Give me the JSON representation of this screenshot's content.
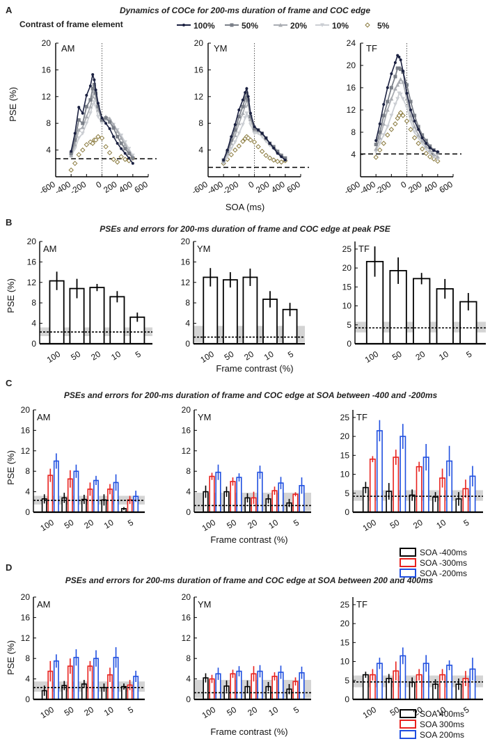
{
  "figure": {
    "panels": [
      {
        "letter": "A",
        "title": "Dynamics of COCe for 200-ms duration of frame and COC edge"
      },
      {
        "letter": "B",
        "title": "PSEs and errors for 200-ms duration of frame and COC edge at peak PSE"
      },
      {
        "letter": "C",
        "title": "PSEs and errors for 200-ms duration of frame and COC edge  at SOA between -400 and -200ms"
      },
      {
        "letter": "D",
        "title": "PSEs and errors for 200-ms duration of frame and COC edge at SOA between 200 and 400ms"
      }
    ],
    "legend_a_label": "Contrast of frame element",
    "legend_a_items": [
      "100%",
      "50%",
      "20%",
      "10%",
      "5%"
    ],
    "legend_a_colors": [
      "#1a2040",
      "#7a7f88",
      "#a9acb2",
      "#cbced3",
      "#8a7a3e"
    ],
    "xlabel_a": "SOA (ms)",
    "xlabel_bcd": "Frame contrast (%)",
    "ylabel": "PSE (%)",
    "subjects": [
      "AM",
      "YM",
      "TF"
    ],
    "soa_colors": [
      "#000000",
      "#e8211d",
      "#1f4fe0"
    ],
    "legend_c": [
      "SOA -400ms",
      "SOA -300ms",
      "SOA -200ms"
    ],
    "legend_d": [
      "SOA  400ms",
      "SOA  300ms",
      "SOA  200ms"
    ]
  },
  "chart_data": [
    {
      "panel": "A",
      "type": "line",
      "title": "Dynamics of COCe for 200-ms duration of frame and COC edge",
      "xlabel": "SOA (ms)",
      "ylabel": "PSE (%)",
      "xlim": [
        -600,
        600
      ],
      "xticks": [
        -600,
        -400,
        -200,
        0,
        200,
        400,
        600
      ],
      "xtick_labels": [
        "-600",
        "-400",
        "-200",
        "0",
        "200",
        "400",
        "600"
      ],
      "x": [
        -400,
        -350,
        -300,
        -250,
        -200,
        -150,
        -120,
        -100,
        -80,
        -50,
        0,
        50,
        100,
        150,
        200,
        250,
        300,
        350,
        400
      ],
      "series_names": [
        "100%",
        "50%",
        "20%",
        "10%",
        "5%"
      ],
      "subplots": [
        {
          "subject": "AM",
          "ylim": [
            0,
            20
          ],
          "yticks": [
            4,
            8,
            12,
            16,
            20
          ],
          "baseline": 2.7,
          "series": [
            [
              3.8,
              6.5,
              10.4,
              9.5,
              12.2,
              13.6,
              15.3,
              14.5,
              13.0,
              11.0,
              8.8,
              8.0,
              7.2,
              6.0,
              5.0,
              4.2,
              3.5,
              2.8,
              2.0
            ],
            [
              3.5,
              5.5,
              8.5,
              8.0,
              10.5,
              11.5,
              13.2,
              13.8,
              12.5,
              10.5,
              8.5,
              8.8,
              8.2,
              7.3,
              6.0,
              5.0,
              4.2,
              3.5,
              2.8
            ],
            [
              3.2,
              4.8,
              7.0,
              7.4,
              9.0,
              10.5,
              12.0,
              12.8,
              11.8,
              10.0,
              8.5,
              9.0,
              8.7,
              7.8,
              6.8,
              5.8,
              4.8,
              3.8,
              3.0
            ],
            [
              3.0,
              4.2,
              5.8,
              6.5,
              8.0,
              9.5,
              10.8,
              11.2,
              10.5,
              9.0,
              8.0,
              8.5,
              8.4,
              7.8,
              7.0,
              6.2,
              5.2,
              4.2,
              3.2
            ],
            [
              1.0,
              2.0,
              3.3,
              4.0,
              4.8,
              5.2,
              5.0,
              5.5,
              5.5,
              6.0,
              5.8,
              4.5,
              3.6,
              2.6,
              2.2,
              3.0,
              2.6,
              2.4,
              2.8
            ]
          ]
        },
        {
          "subject": "YM",
          "ylim": [
            0,
            20
          ],
          "yticks": [
            4,
            8,
            12,
            16,
            20
          ],
          "baseline": 1.4,
          "series": [
            [
              2.5,
              4.0,
              6.0,
              7.8,
              10.0,
              11.5,
              12.6,
              13.2,
              12.0,
              9.5,
              7.5,
              7.0,
              6.5,
              5.8,
              5.0,
              4.3,
              3.5,
              3.0,
              2.5
            ],
            [
              2.5,
              3.8,
              5.5,
              7.0,
              9.0,
              10.5,
              11.8,
              12.5,
              11.5,
              9.0,
              7.2,
              7.0,
              6.5,
              5.8,
              5.0,
              4.5,
              3.8,
              3.2,
              2.8
            ],
            [
              2.3,
              3.5,
              5.0,
              6.2,
              8.0,
              9.5,
              10.6,
              11.5,
              10.8,
              8.6,
              7.0,
              6.9,
              6.4,
              5.7,
              5.0,
              4.4,
              3.8,
              3.2,
              2.6
            ],
            [
              2.0,
              3.0,
              4.2,
              5.2,
              6.5,
              7.8,
              8.8,
              9.5,
              9.0,
              7.8,
              6.5,
              6.5,
              6.0,
              5.3,
              4.7,
              4.2,
              3.6,
              3.0,
              2.5
            ],
            [
              2.0,
              2.6,
              3.3,
              4.0,
              4.6,
              5.3,
              5.7,
              6.0,
              5.8,
              5.5,
              5.2,
              4.5,
              3.8,
              3.2,
              2.8,
              2.5,
              2.3,
              2.2,
              2.4
            ]
          ]
        },
        {
          "subject": "TF",
          "ylim": [
            0,
            24
          ],
          "yticks": [
            4,
            8,
            12,
            16,
            20,
            24
          ],
          "baseline": 4.1,
          "series": [
            [
              6.5,
              9.5,
              13.0,
              16.0,
              18.5,
              20.5,
              21.8,
              21.5,
              21.0,
              19.0,
              15.0,
              12.0,
              10.0,
              8.5,
              7.0,
              6.0,
              5.2,
              4.7,
              4.5
            ],
            [
              5.8,
              8.0,
              11.0,
              13.5,
              16.0,
              18.0,
              19.5,
              19.5,
              19.3,
              18.8,
              16.5,
              13.5,
              11.0,
              9.0,
              7.5,
              6.5,
              5.5,
              4.8,
              4.3
            ],
            [
              5.0,
              7.0,
              9.5,
              12.0,
              14.0,
              15.8,
              16.5,
              17.0,
              17.5,
              17.0,
              14.0,
              11.0,
              9.0,
              7.5,
              6.5,
              5.5,
              4.8,
              4.0,
              3.6
            ],
            [
              4.5,
              6.0,
              7.5,
              9.0,
              11.0,
              13.0,
              14.0,
              15.0,
              14.8,
              14.0,
              12.5,
              10.0,
              8.0,
              7.0,
              6.0,
              5.0,
              4.2,
              3.6,
              3.2
            ],
            [
              3.5,
              4.8,
              6.0,
              7.5,
              8.5,
              9.5,
              10.5,
              11.0,
              11.5,
              11.0,
              10.0,
              8.5,
              7.0,
              6.0,
              5.0,
              4.2,
              3.6,
              3.2,
              2.8
            ]
          ]
        }
      ]
    },
    {
      "panel": "B",
      "type": "bar",
      "title": "PSEs and errors for 200-ms duration of frame and COC edge at peak PSE",
      "xlabel": "Frame contrast (%)",
      "ylabel": "PSE (%)",
      "categories": [
        "100",
        "50",
        "20",
        "10",
        "5"
      ],
      "subplots": [
        {
          "subject": "AM",
          "ylim": [
            0,
            20
          ],
          "yticks": [
            0,
            4,
            8,
            12,
            16,
            20
          ],
          "baseline": 2.3,
          "band": [
            1.5,
            3.2
          ],
          "values": [
            12.3,
            10.8,
            11.0,
            9.2,
            5.2
          ],
          "errors": [
            1.8,
            1.9,
            0.7,
            1.1,
            0.9
          ]
        },
        {
          "subject": "YM",
          "ylim": [
            0,
            20
          ],
          "yticks": [
            0,
            4,
            8,
            12,
            16,
            20
          ],
          "baseline": 1.3,
          "band": [
            0.3,
            3.5
          ],
          "values": [
            13.0,
            12.5,
            13.0,
            8.7,
            6.7
          ],
          "errors": [
            1.8,
            1.5,
            1.7,
            1.6,
            1.3
          ]
        },
        {
          "subject": "TF",
          "ylim": [
            0,
            27
          ],
          "yticks": [
            0,
            5,
            10,
            15,
            20,
            25
          ],
          "baseline": 4.2,
          "band": [
            3.0,
            5.8
          ],
          "values": [
            21.7,
            19.3,
            17.2,
            14.5,
            11.1
          ],
          "errors": [
            4.0,
            3.5,
            1.5,
            2.6,
            2.3
          ]
        }
      ]
    },
    {
      "panel": "C",
      "type": "bar",
      "title": "PSEs and errors for 200-ms duration of frame and COC edge  at SOA between -400 and -200ms",
      "xlabel": "Frame contrast (%)",
      "ylabel": "PSE (%)",
      "categories": [
        "100",
        "50",
        "20",
        "10",
        "5"
      ],
      "series_names": [
        "SOA -400ms",
        "SOA -300ms",
        "SOA -200ms"
      ],
      "subplots": [
        {
          "subject": "AM",
          "ylim": [
            0,
            20
          ],
          "yticks": [
            0,
            4,
            8,
            12,
            16,
            20
          ],
          "baseline": 2.3,
          "band": [
            1.5,
            3.2
          ],
          "series": [
            {
              "values": [
                2.6,
                2.8,
                2.5,
                2.4,
                0.7
              ],
              "errors": [
                0.9,
                1.0,
                0.9,
                1.1,
                0.3
              ]
            },
            {
              "values": [
                7.2,
                6.5,
                4.5,
                4.5,
                2.4
              ],
              "errors": [
                1.3,
                1.7,
                1.3,
                1.0,
                0.8
              ]
            },
            {
              "values": [
                10.0,
                8.0,
                6.2,
                5.8,
                3.1
              ],
              "errors": [
                1.5,
                1.3,
                0.9,
                1.6,
                1.1
              ]
            }
          ]
        },
        {
          "subject": "YM",
          "ylim": [
            0,
            20
          ],
          "yticks": [
            0,
            4,
            8,
            12,
            16,
            20
          ],
          "baseline": 1.3,
          "band": [
            0.3,
            3.8
          ],
          "series": [
            {
              "values": [
                4.0,
                4.0,
                2.8,
                2.6,
                1.8
              ],
              "errors": [
                1.2,
                1.0,
                0.9,
                0.9,
                0.8
              ]
            },
            {
              "values": [
                7.0,
                6.0,
                2.8,
                4.2,
                3.5
              ],
              "errors": [
                0.7,
                0.8,
                1.2,
                0.8,
                0.4
              ]
            },
            {
              "values": [
                7.8,
                6.8,
                7.8,
                5.7,
                5.2
              ],
              "errors": [
                1.5,
                0.8,
                1.3,
                1.2,
                1.6
              ]
            }
          ]
        },
        {
          "subject": "TF",
          "ylim": [
            0,
            27
          ],
          "yticks": [
            0,
            5,
            10,
            15,
            20,
            25
          ],
          "baseline": 4.2,
          "band": [
            3.0,
            5.8
          ],
          "series": [
            {
              "values": [
                6.5,
                5.5,
                4.5,
                4.0,
                3.5
              ],
              "errors": [
                1.5,
                2.2,
                1.5,
                1.3,
                1.8
              ]
            },
            {
              "values": [
                14.0,
                14.5,
                12.0,
                9.0,
                6.2
              ],
              "errors": [
                0.8,
                2.0,
                1.3,
                2.5,
                2.4
              ]
            },
            {
              "values": [
                21.5,
                20.0,
                14.5,
                13.5,
                9.5
              ],
              "errors": [
                2.8,
                3.3,
                3.5,
                4.0,
                2.7
              ]
            }
          ]
        }
      ]
    },
    {
      "panel": "D",
      "type": "bar",
      "title": "PSEs and errors for 200-ms duration of frame and COC edge at SOA between 200 and 400ms",
      "xlabel": "Frame contrast (%)",
      "ylabel": "PSE (%)",
      "categories": [
        "100",
        "50",
        "20",
        "10",
        "5"
      ],
      "series_names": [
        "SOA  400ms",
        "SOA  300ms",
        "SOA  200ms"
      ],
      "subplots": [
        {
          "subject": "AM",
          "ylim": [
            0,
            20
          ],
          "yticks": [
            0,
            4,
            8,
            12,
            16,
            20
          ],
          "baseline": 2.3,
          "band": [
            1.5,
            3.5
          ],
          "series": [
            {
              "values": [
                1.7,
                2.7,
                3.0,
                2.3,
                2.5
              ],
              "errors": [
                1.0,
                0.9,
                0.8,
                0.8,
                0.6
              ]
            },
            {
              "values": [
                5.5,
                6.5,
                6.5,
                4.8,
                2.8
              ],
              "errors": [
                2.0,
                1.5,
                1.0,
                1.4,
                1.0
              ]
            },
            {
              "values": [
                7.5,
                8.2,
                8.0,
                8.2,
                4.5
              ],
              "errors": [
                1.3,
                1.6,
                1.6,
                2.0,
                1.1
              ]
            }
          ]
        },
        {
          "subject": "YM",
          "ylim": [
            0,
            20
          ],
          "yticks": [
            0,
            4,
            8,
            12,
            16,
            20
          ],
          "baseline": 1.3,
          "band": [
            0.3,
            3.8
          ],
          "series": [
            {
              "values": [
                4.2,
                2.6,
                2.5,
                2.5,
                2.0
              ],
              "errors": [
                0.9,
                1.1,
                1.2,
                0.9,
                1.0
              ]
            },
            {
              "values": [
                4.0,
                5.0,
                5.0,
                4.5,
                3.5
              ],
              "errors": [
                0.8,
                0.8,
                1.5,
                0.8,
                0.8
              ]
            },
            {
              "values": [
                5.0,
                5.5,
                5.5,
                5.3,
                5.2
              ],
              "errors": [
                1.2,
                1.0,
                1.2,
                1.3,
                1.2
              ]
            }
          ]
        },
        {
          "subject": "TF",
          "ylim": [
            0,
            27
          ],
          "yticks": [
            0,
            5,
            10,
            15,
            20,
            25
          ],
          "baseline": 4.6,
          "band": [
            3.2,
            6.3
          ],
          "series": [
            {
              "values": [
                6.5,
                5.5,
                4.5,
                4.0,
                4.0
              ],
              "errors": [
                0.8,
                1.2,
                1.3,
                1.3,
                1.5
              ]
            },
            {
              "values": [
                6.5,
                7.5,
                6.5,
                6.5,
                5.5
              ],
              "errors": [
                1.5,
                2.5,
                1.5,
                1.5,
                2.0
              ]
            },
            {
              "values": [
                9.5,
                11.5,
                9.5,
                9.0,
                8.0
              ],
              "errors": [
                1.5,
                2.2,
                2.2,
                1.3,
                3.0
              ]
            }
          ]
        }
      ]
    }
  ]
}
